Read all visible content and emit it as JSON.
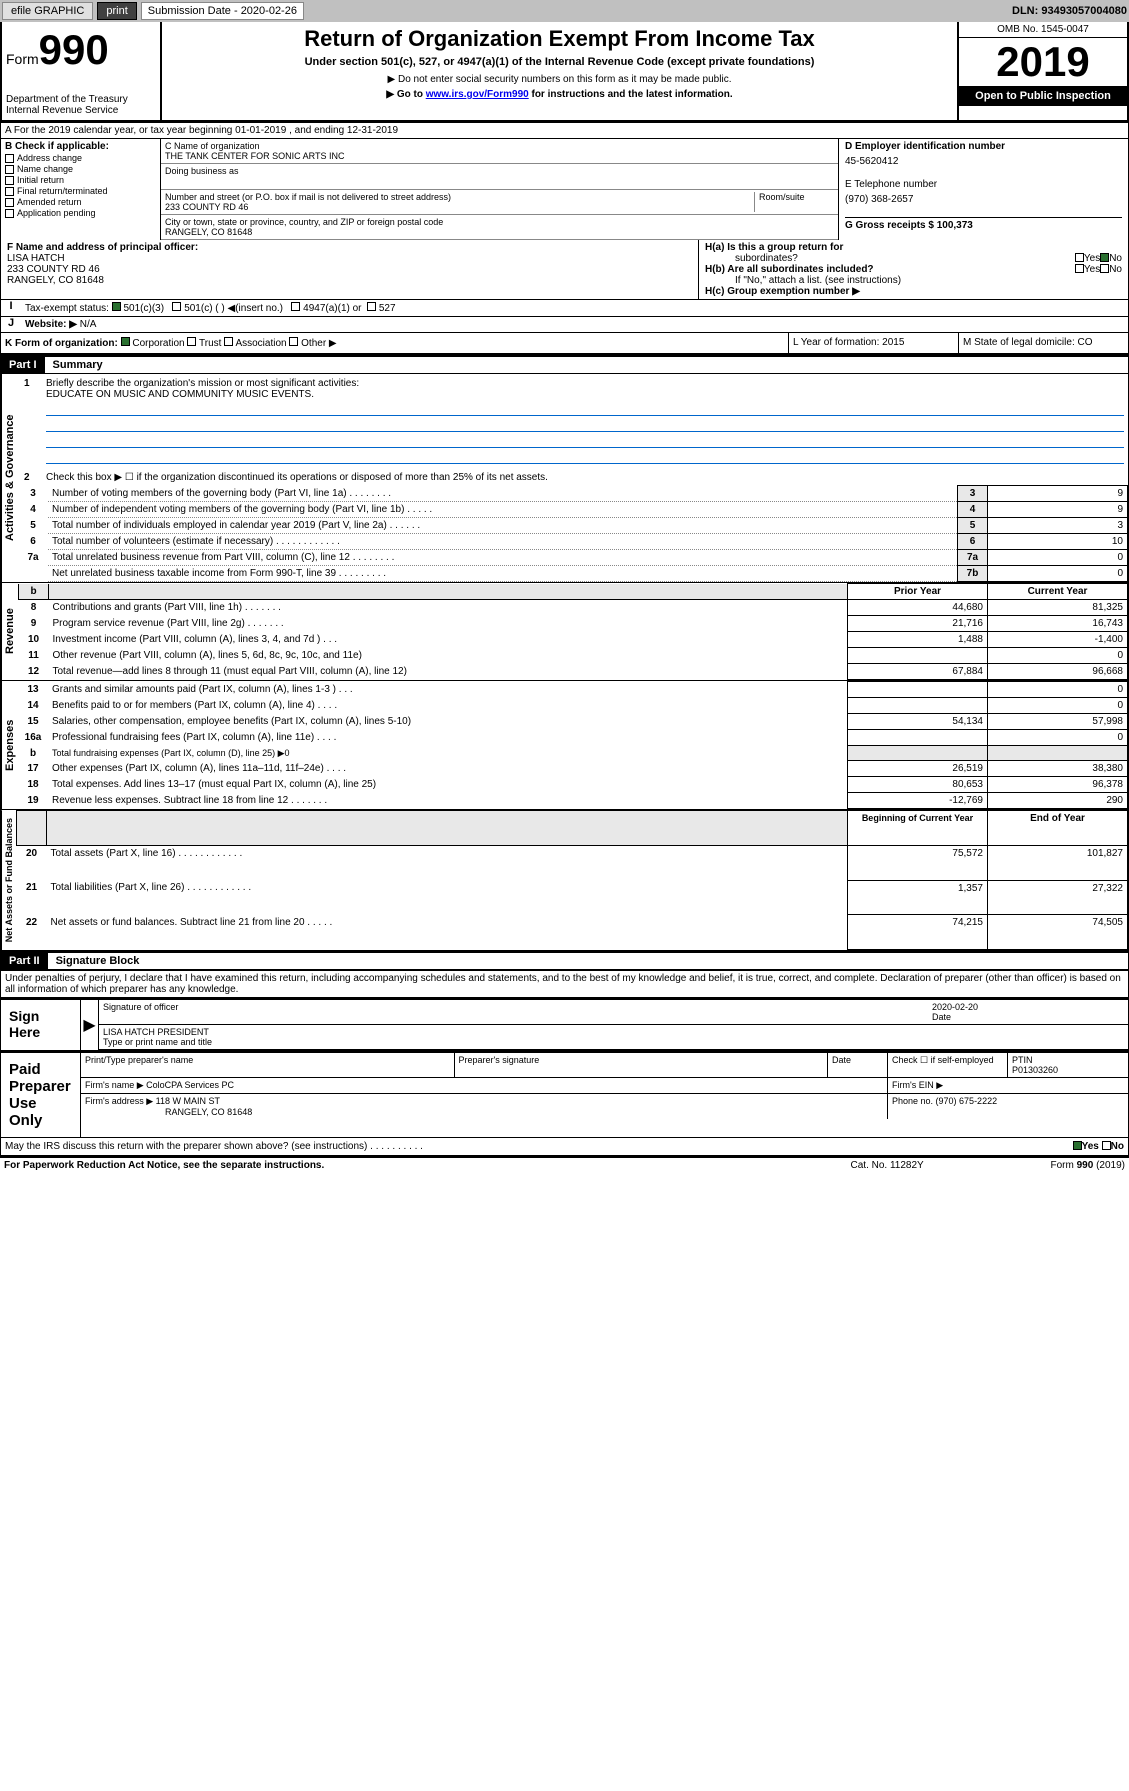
{
  "topbar": {
    "efile": "efile GRAPHIC",
    "print": "print",
    "sub_label": "Submission Date - 2020-02-26",
    "dln": "DLN: 93493057004080"
  },
  "header": {
    "form": "Form",
    "form_num": "990",
    "dept": "Department of the Treasury\nInternal Revenue Service",
    "title": "Return of Organization Exempt From Income Tax",
    "subtitle": "Under section 501(c), 527, or 4947(a)(1) of the Internal Revenue Code (except private foundations)",
    "warn1": "▶ Do not enter social security numbers on this form as it may be made public.",
    "warn2_pre": "▶ Go to ",
    "warn2_link": "www.irs.gov/Form990",
    "warn2_post": " for instructions and the latest information.",
    "omb": "OMB No. 1545-0047",
    "year": "2019",
    "open": "Open to Public Inspection"
  },
  "rowA": "A For the 2019 calendar year, or tax year beginning 01-01-2019   , and ending 12-31-2019",
  "sectionB": {
    "check_label": "B Check if applicable:",
    "addr_change": "Address change",
    "name_change": "Name change",
    "initial": "Initial return",
    "final": "Final return/terminated",
    "amended": "Amended return",
    "app_pending": "Application pending",
    "c_label": "C Name of organization",
    "org_name": "THE TANK CENTER FOR SONIC ARTS INC",
    "dba_label": "Doing business as",
    "addr_label": "Number and street (or P.O. box if mail is not delivered to street address)",
    "room_label": "Room/suite",
    "addr": "233 COUNTY RD 46",
    "city_label": "City or town, state or province, country, and ZIP or foreign postal code",
    "city": "RANGELY, CO  81648",
    "d_label": "D Employer identification number",
    "ein": "45-5620412",
    "e_label": "E Telephone number",
    "phone": "(970) 368-2657",
    "g_label": "G Gross receipts $ 100,373"
  },
  "sectionF": {
    "f_label": "F  Name and address of principal officer:",
    "name": "LISA HATCH",
    "addr1": "233 COUNTY RD 46",
    "addr2": "RANGELY, CO  81648",
    "ha_label": "H(a)  Is this a group return for",
    "ha_sub": "subordinates?",
    "hb_label": "H(b)  Are all subordinates included?",
    "hb_note": "If \"No,\" attach a list. (see instructions)",
    "hc_label": "H(c)  Group exemption number ▶",
    "yes": "Yes",
    "no": "No"
  },
  "rowI": {
    "label": "Tax-exempt status:",
    "opt1": "501(c)(3)",
    "opt2": "501(c) (  ) ◀(insert no.)",
    "opt3": "4947(a)(1) or",
    "opt4": "527"
  },
  "rowJ": {
    "label": "Website: ▶",
    "val": "N/A"
  },
  "rowK": {
    "label": "K Form of organization:",
    "corp": "Corporation",
    "trust": "Trust",
    "assoc": "Association",
    "other": "Other ▶",
    "l_label": "L Year of formation: 2015",
    "m_label": "M State of legal domicile: CO"
  },
  "part1": {
    "label": "Part I",
    "title": "Summary",
    "q1": "Briefly describe the organization's mission or most significant activities:",
    "q1_ans": "EDUCATE ON MUSIC AND COMMUNITY MUSIC EVENTS.",
    "q2": "Check this box ▶ ☐  if the organization discontinued its operations or disposed of more than 25% of its net assets.",
    "lines": [
      {
        "n": "3",
        "t": "Number of voting members of the governing body (Part VI, line 1a)  .    .    .    .    .    .    .    .",
        "box": "3",
        "v": "9"
      },
      {
        "n": "4",
        "t": "Number of independent voting members of the governing body (Part VI, line 1b)  .    .    .    .    .",
        "box": "4",
        "v": "9"
      },
      {
        "n": "5",
        "t": "Total number of individuals employed in calendar year 2019 (Part V, line 2a)   .    .    .    .    .    .",
        "box": "5",
        "v": "3"
      },
      {
        "n": "6",
        "t": "Total number of volunteers (estimate if necessary)    .    .    .    .    .    .    .    .    .    .    .    .",
        "box": "6",
        "v": "10"
      },
      {
        "n": "7a",
        "t": "Total unrelated business revenue from Part VIII, column (C), line 12   .    .    .    .    .    .    .    .",
        "box": "7a",
        "v": "0"
      },
      {
        "n": "",
        "t": "Net unrelated business taxable income from Form 990-T, line 39   .    .    .    .    .    .    .    .    .",
        "box": "7b",
        "v": "0"
      }
    ],
    "col_prior": "Prior Year",
    "col_curr": "Current Year",
    "rev": [
      {
        "n": "8",
        "t": "Contributions and grants (Part VIII, line 1h)   .    .    .    .    .    .    .",
        "p": "44,680",
        "c": "81,325"
      },
      {
        "n": "9",
        "t": "Program service revenue (Part VIII, line 2g)    .    .    .    .    .    .    .",
        "p": "21,716",
        "c": "16,743"
      },
      {
        "n": "10",
        "t": "Investment income (Part VIII, column (A), lines 3, 4, and 7d )   .    .    .",
        "p": "1,488",
        "c": "-1,400"
      },
      {
        "n": "11",
        "t": "Other revenue (Part VIII, column (A), lines 5, 6d, 8c, 9c, 10c, and 11e)",
        "p": "",
        "c": "0"
      },
      {
        "n": "12",
        "t": "Total revenue—add lines 8 through 11 (must equal Part VIII, column (A), line 12)",
        "p": "67,884",
        "c": "96,668"
      }
    ],
    "exp": [
      {
        "n": "13",
        "t": "Grants and similar amounts paid (Part IX, column (A), lines 1-3 )    .    .    .",
        "p": "",
        "c": "0"
      },
      {
        "n": "14",
        "t": "Benefits paid to or for members (Part IX, column (A), line 4)  .    .    .    .",
        "p": "",
        "c": "0"
      },
      {
        "n": "15",
        "t": "Salaries, other compensation, employee benefits (Part IX, column (A), lines 5-10)",
        "p": "54,134",
        "c": "57,998"
      },
      {
        "n": "16a",
        "t": "Professional fundraising fees (Part IX, column (A), line 11e)  .    .    .    .",
        "p": "",
        "c": "0"
      },
      {
        "n": "b",
        "t": "Total fundraising expenses (Part IX, column (D), line 25) ▶0",
        "p": null,
        "c": null
      },
      {
        "n": "17",
        "t": "Other expenses (Part IX, column (A), lines 11a–11d, 11f–24e)  .   .   .   .",
        "p": "26,519",
        "c": "38,380"
      },
      {
        "n": "18",
        "t": "Total expenses. Add lines 13–17 (must equal Part IX, column (A), line 25)",
        "p": "80,653",
        "c": "96,378"
      },
      {
        "n": "19",
        "t": "Revenue less expenses. Subtract line 18 from line 12 .   .   .   .   .   .   .",
        "p": "-12,769",
        "c": "290"
      }
    ],
    "col_beg": "Beginning of Current Year",
    "col_end": "End of Year",
    "net": [
      {
        "n": "20",
        "t": "Total assets (Part X, line 16)    .    .    .    .    .    .    .    .    .    .    .    .",
        "p": "75,572",
        "c": "101,827"
      },
      {
        "n": "21",
        "t": "Total liabilities (Part X, line 26)  .    .    .    .    .    .    .    .    .    .    .    .",
        "p": "1,357",
        "c": "27,322"
      },
      {
        "n": "22",
        "t": "Net assets or fund balances. Subtract line 21 from line 20  .    .    .    .    .",
        "p": "74,215",
        "c": "74,505"
      }
    ],
    "tab_gov": "Activities & Governance",
    "tab_rev": "Revenue",
    "tab_exp": "Expenses",
    "tab_net": "Net Assets or Fund Balances"
  },
  "part2": {
    "label": "Part II",
    "title": "Signature Block",
    "perjury": "Under penalties of perjury, I declare that I have examined this return, including accompanying schedules and statements, and to the best of my knowledge and belief, it is true, correct, and complete. Declaration of preparer (other than officer) is based on all information of which preparer has any knowledge.",
    "sign_here": "Sign Here",
    "sig_officer": "Signature of officer",
    "sig_date": "2020-02-20",
    "date_label": "Date",
    "officer": "LISA HATCH PRESIDENT",
    "type_name": "Type or print name and title",
    "paid_prep": "Paid Preparer Use Only",
    "prep_name_label": "Print/Type preparer's name",
    "prep_sig_label": "Preparer's signature",
    "check_self": "Check ☐ if self-employed",
    "ptin_label": "PTIN",
    "ptin": "P01303260",
    "firm_name_label": "Firm's name    ▶",
    "firm_name": "ColoCPA Services PC",
    "firm_ein_label": "Firm's EIN ▶",
    "firm_addr_label": "Firm's address ▶",
    "firm_addr": "118 W MAIN ST",
    "firm_city": "RANGELY, CO  81648",
    "firm_phone_label": "Phone no. (970) 675-2222",
    "discuss": "May the IRS discuss this return with the preparer shown above? (see instructions)    .    .    .    .    .    .    .    .    .    .",
    "paperwork": "For Paperwork Reduction Act Notice, see the separate instructions.",
    "cat": "Cat. No. 11282Y",
    "form_foot": "Form 990 (2019)"
  }
}
